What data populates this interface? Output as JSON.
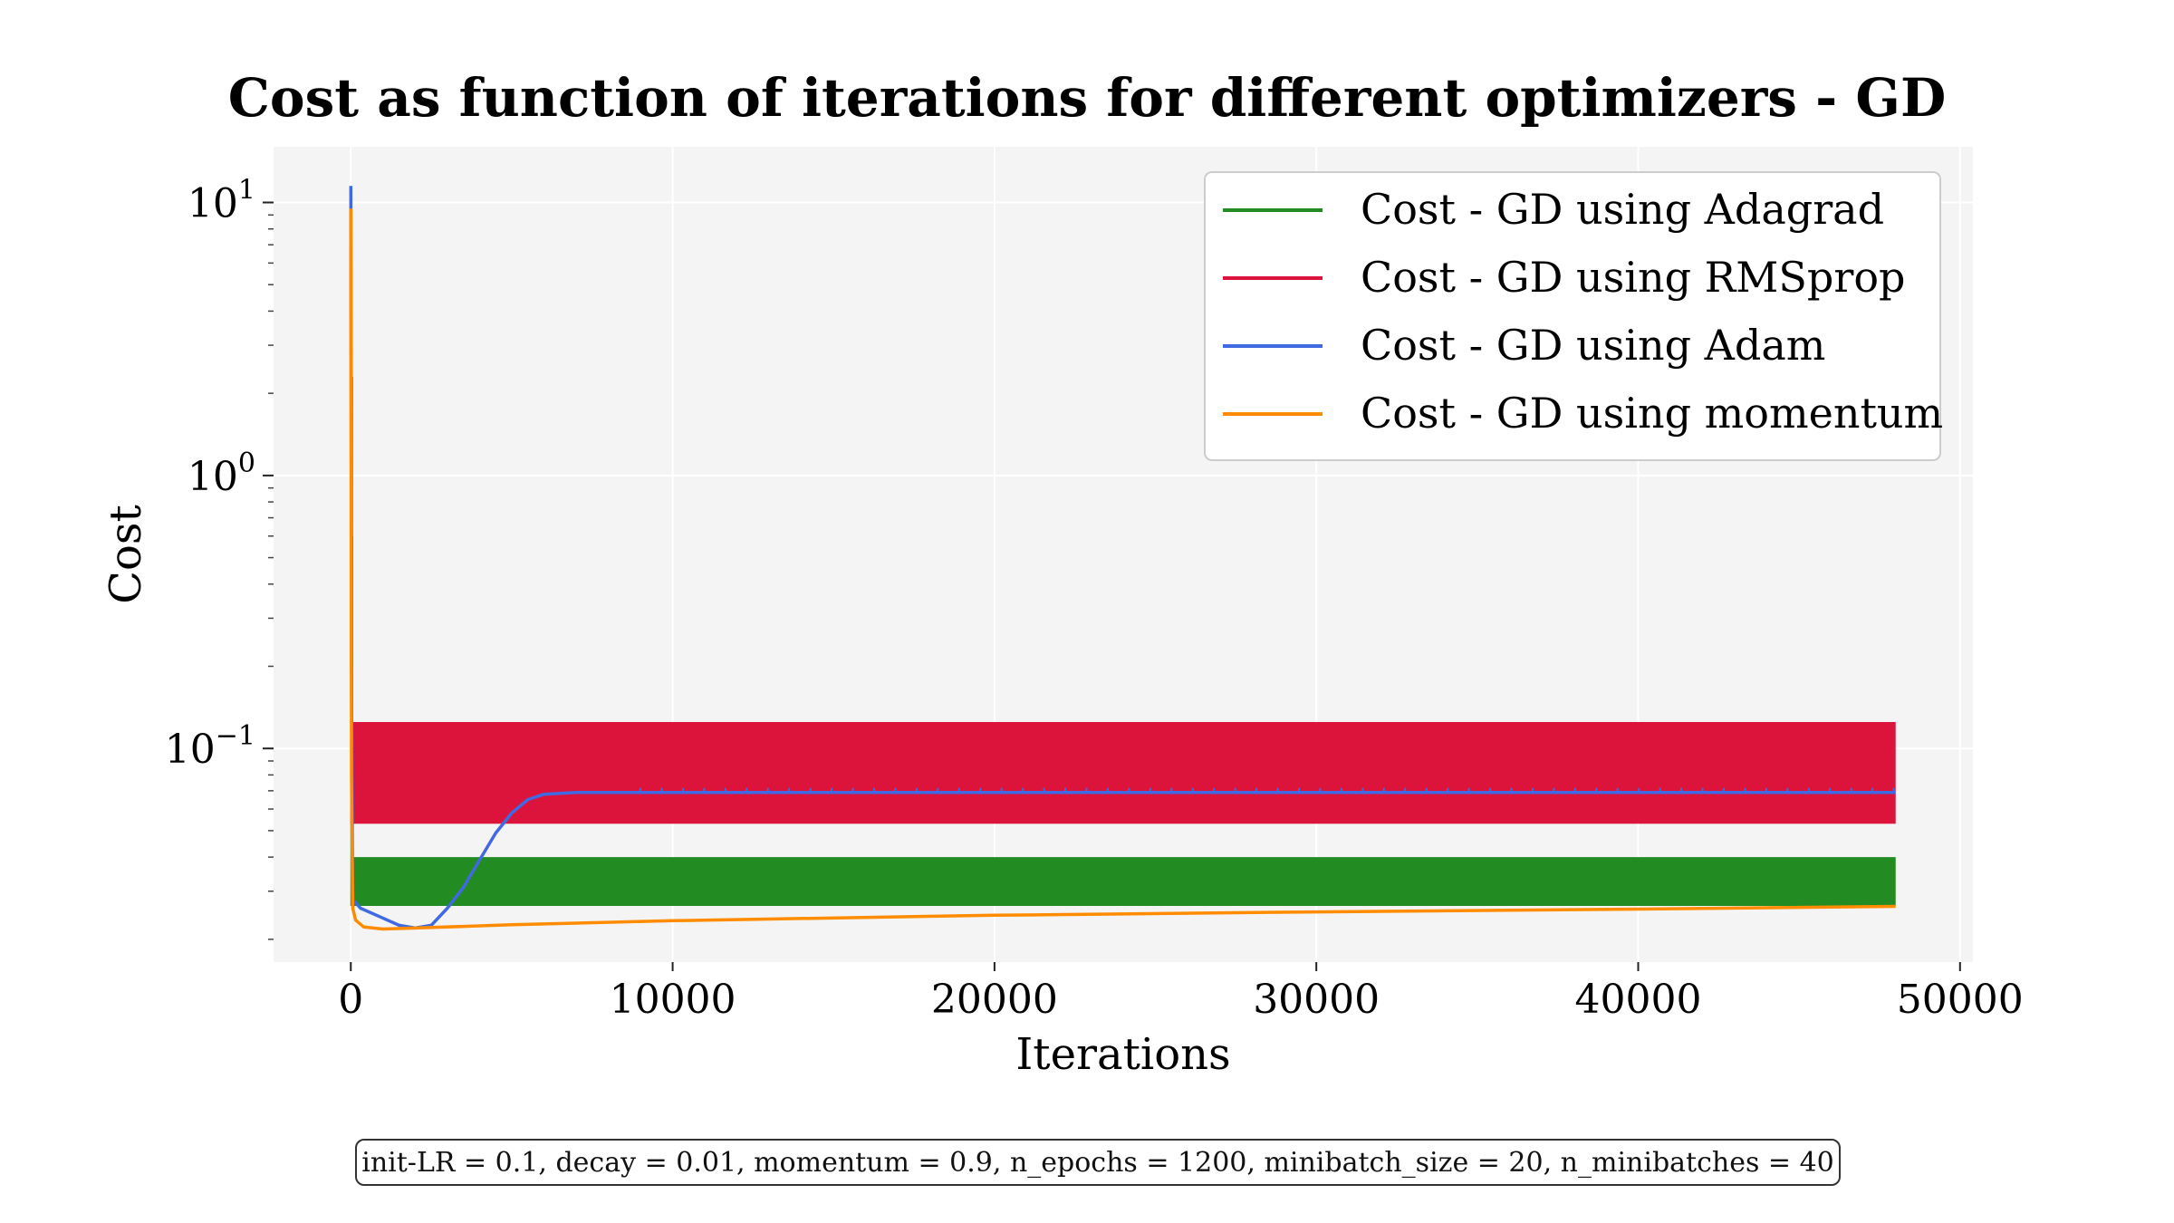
{
  "chart_data": {
    "type": "line",
    "title": "Cost as function of iterations for different optimizers - GD",
    "xlabel": "Iterations",
    "ylabel": "Cost",
    "yscale": "log",
    "xlim": [
      -2400,
      50400
    ],
    "ylim": [
      0.0165,
      16
    ],
    "x_ticks": [
      0,
      10000,
      20000,
      30000,
      40000,
      50000
    ],
    "x_tick_labels": [
      "0",
      "10000",
      "20000",
      "30000",
      "40000",
      "50000"
    ],
    "y_ticks": [
      10,
      1,
      0.1
    ],
    "y_tick_labels": [
      {
        "base": "10",
        "exp": "1"
      },
      {
        "base": "10",
        "exp": "0"
      },
      {
        "base": "10",
        "exp": "−1"
      }
    ],
    "grid": true,
    "legend_position": "top-right",
    "series": [
      {
        "name": "Cost - GD using Adagrad",
        "color": "#228b22",
        "kind": "band",
        "x": [
          0,
          48000
        ],
        "upper": 0.04,
        "lower": 0.0265,
        "initial_spike": 2.3
      },
      {
        "name": "Cost - GD using RMSprop",
        "color": "#dc143c",
        "kind": "band",
        "x": [
          0,
          48000
        ],
        "upper": 0.125,
        "lower": 0.053,
        "initial_spike": 0.6
      },
      {
        "name": "Cost - GD using Adam",
        "color": "#4169e1",
        "kind": "line",
        "x": [
          0,
          20,
          60,
          300,
          800,
          1500,
          2000,
          2500,
          3000,
          3500,
          4000,
          4500,
          5000,
          5500,
          6000,
          7000,
          9000,
          20000,
          30000,
          40000,
          48000
        ],
        "y": [
          11.5,
          0.2,
          0.028,
          0.026,
          0.0245,
          0.0225,
          0.022,
          0.0225,
          0.026,
          0.031,
          0.039,
          0.049,
          0.058,
          0.065,
          0.068,
          0.069,
          0.069,
          0.069,
          0.069,
          0.069,
          0.069
        ]
      },
      {
        "name": "Cost - GD using momentum",
        "color": "#ff8c00",
        "kind": "line",
        "x": [
          0,
          20,
          60,
          150,
          400,
          1000,
          2000,
          5000,
          10000,
          20000,
          30000,
          40000,
          48000
        ],
        "y": [
          9.5,
          0.08,
          0.026,
          0.0235,
          0.0222,
          0.0218,
          0.022,
          0.0226,
          0.0234,
          0.0245,
          0.0252,
          0.0258,
          0.0264
        ]
      }
    ]
  },
  "footnote": "init-LR = 0.1, decay = 0.01, momentum = 0.9, n_epochs = 1200, minibatch_size = 20, n_minibatches = 40"
}
